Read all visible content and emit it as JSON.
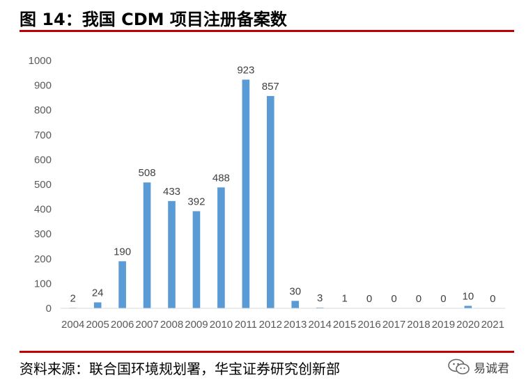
{
  "header": {
    "title": "图 14：我国 CDM 项目注册备案数"
  },
  "footer": {
    "source": "资料来源：联合国环境规划署，华宝证券研究创新部"
  },
  "watermark": {
    "text": "易诚君",
    "icon": "wechat-icon"
  },
  "colors": {
    "bar": "#5b9bd5",
    "rule": "#c00000",
    "axis": "#d9d9d9"
  },
  "chart_data": {
    "type": "bar",
    "title": "",
    "xlabel": "",
    "ylabel": "",
    "categories": [
      "2004",
      "2005",
      "2006",
      "2007",
      "2008",
      "2009",
      "2010",
      "2011",
      "2012",
      "2013",
      "2014",
      "2015",
      "2016",
      "2017",
      "2018",
      "2019",
      "2020",
      "2021"
    ],
    "values": [
      2,
      24,
      190,
      508,
      433,
      392,
      488,
      923,
      857,
      30,
      3,
      1,
      0,
      0,
      0,
      0,
      10,
      0
    ],
    "ylim": [
      0,
      1000
    ],
    "yticks": [
      0,
      100,
      200,
      300,
      400,
      500,
      600,
      700,
      800,
      900,
      1000
    ],
    "grid": false,
    "legend": "none",
    "data_labels": true
  }
}
